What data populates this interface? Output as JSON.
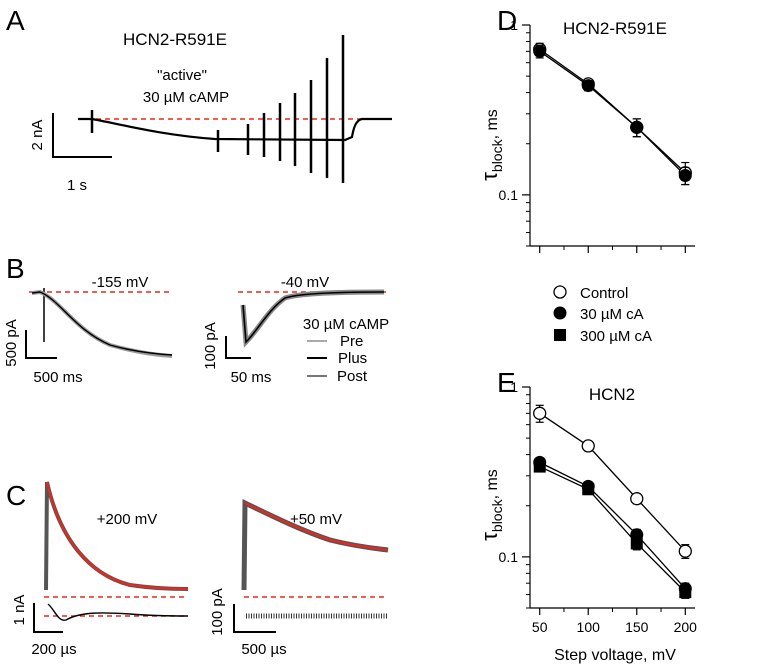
{
  "panels": {
    "A": {
      "letter": "A",
      "title": "HCN2-R591E",
      "condition_line1": "\"active\"",
      "condition_line2": "30 µM cAMP",
      "scale_y": "2 nA",
      "scale_x": "1 s"
    },
    "B": {
      "letter": "B",
      "left_voltage": "-155 mV",
      "left_scale_y": "500 pA",
      "left_scale_x": "500 ms",
      "right_voltage": "-40 mV",
      "right_scale_y": "100 pA",
      "right_scale_x": "50 ms",
      "legend_title": "30 µM cAMP",
      "legend_items": [
        "Pre",
        "Plus",
        "Post"
      ],
      "legend_colors": [
        "#aaaaaa",
        "#000000",
        "#777777"
      ]
    },
    "C": {
      "letter": "C",
      "left_voltage": "+200 mV",
      "left_scale_y": "1 nA",
      "left_scale_x": "200 µs",
      "right_voltage": "+50 mV",
      "right_scale_y": "100 pA",
      "right_scale_x": "500 µs",
      "fit_color": "#e8281e"
    },
    "D": {
      "letter": "D",
      "title": "HCN2-R591E",
      "y_label_main": "τ",
      "y_label_sub": "block",
      "y_label_rest": ", ms"
    },
    "E": {
      "letter": "E",
      "title": "HCN2",
      "y_label_main": "τ",
      "y_label_sub": "block",
      "y_label_rest": ", ms",
      "x_label": "Step voltage, mV"
    }
  },
  "legend_DE": {
    "items": [
      {
        "label": "Control",
        "marker": "open-circle"
      },
      {
        "label": "30 µM cA",
        "marker": "filled-circle"
      },
      {
        "label": "300 µM cA",
        "marker": "filled-square"
      }
    ]
  },
  "chart_data": [
    {
      "id": "D",
      "type": "scatter",
      "title": "HCN2-R591E",
      "xlabel": "",
      "ylabel": "τblock, ms",
      "yscale": "log",
      "x": [
        50,
        100,
        150,
        200
      ],
      "xlim": [
        40,
        210
      ],
      "ylim": [
        0.05,
        1
      ],
      "y_ticks": [
        "1",
        "0.1"
      ],
      "series": [
        {
          "name": "Control",
          "values": [
            0.72,
            0.45,
            0.25,
            0.135
          ],
          "errors": [
            0.06,
            0.03,
            0.03,
            0.02
          ]
        },
        {
          "name": "30 µM cA",
          "values": [
            0.7,
            0.44,
            0.25,
            0.13
          ],
          "errors": [
            0.06,
            0.03,
            0.03,
            0.015
          ]
        }
      ]
    },
    {
      "id": "E",
      "type": "scatter",
      "title": "HCN2",
      "xlabel": "Step voltage, mV",
      "ylabel": "τblock, ms",
      "yscale": "log",
      "x": [
        50,
        100,
        150,
        200
      ],
      "x_ticks": [
        "50",
        "100",
        "150",
        "200"
      ],
      "xlim": [
        40,
        210
      ],
      "ylim": [
        0.05,
        1
      ],
      "y_ticks": [
        "1",
        "0.1"
      ],
      "series": [
        {
          "name": "Control",
          "values": [
            0.7,
            0.45,
            0.22,
            0.108
          ],
          "errors": [
            0.08,
            0.03,
            0.015,
            0.01
          ]
        },
        {
          "name": "30 µM cA",
          "values": [
            0.36,
            0.26,
            0.135,
            0.065
          ],
          "errors": [
            0.02,
            0.015,
            0.01,
            0.005
          ]
        },
        {
          "name": "300 µM cA",
          "values": [
            0.34,
            0.25,
            0.12,
            0.062
          ],
          "errors": [
            0.02,
            0.015,
            0.01,
            0.005
          ]
        }
      ]
    }
  ]
}
